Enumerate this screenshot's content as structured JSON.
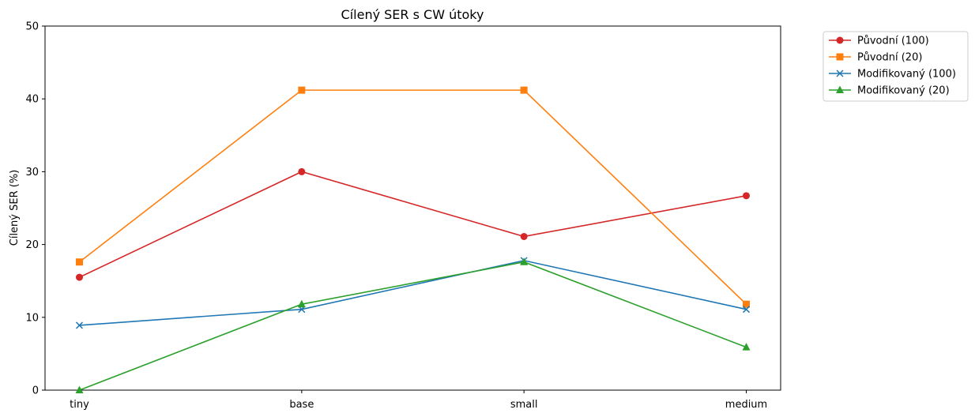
{
  "chart_data": {
    "type": "line",
    "title": "Cílený SER s CW útoky",
    "xlabel": "",
    "ylabel": "Cílený SER (%)",
    "categories": [
      "tiny",
      "base",
      "small",
      "medium"
    ],
    "ylim": [
      0,
      50
    ],
    "yticks": [
      0,
      10,
      20,
      30,
      40,
      50
    ],
    "grid": false,
    "legend_position": "outside-top-right",
    "series": [
      {
        "name": "Původní (100)",
        "color": "#d62728",
        "marker": "circle",
        "values": [
          15.5,
          30.0,
          21.1,
          26.7
        ]
      },
      {
        "name": "Původní (20)",
        "color": "#ff7f0e",
        "marker": "square",
        "values": [
          17.6,
          41.2,
          41.2,
          11.8
        ]
      },
      {
        "name": "Modifikovaný (100)",
        "color": "#1f77b4",
        "marker": "x",
        "values": [
          8.9,
          11.1,
          17.8,
          11.1
        ]
      },
      {
        "name": "Modifikovaný (20)",
        "color": "#2ca02c",
        "marker": "triangle",
        "values": [
          0.0,
          11.8,
          17.6,
          5.9
        ]
      }
    ]
  }
}
